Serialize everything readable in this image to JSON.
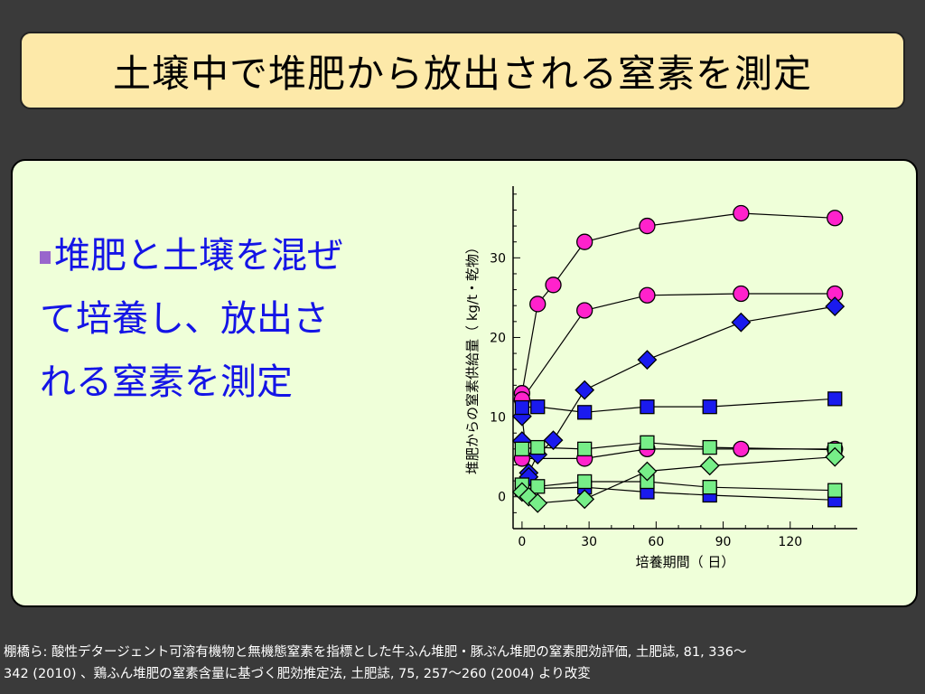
{
  "title": "土壌中で堆肥から放出される窒素を測定",
  "bullet": {
    "lines": [
      "堆肥と土壌を混ぜ",
      "て培養し、放出さ",
      "れる窒素を測定"
    ]
  },
  "footer": {
    "line1": "棚橋ら: 酸性デタージェント可溶有機物と無機態窒素を指標とした牛ふん堆肥・豚ぷん堆肥の窒素肥効評価, 土肥誌, 81, 336〜",
    "line2": "342 (2010) 、鶏ふん堆肥の窒素含量に基づく肥効推定法, 土肥誌, 75, 257〜260 (2004) より改変"
  },
  "colors": {
    "title_bg": "#fde9a9",
    "panel_bg": "#efffd9",
    "bullet_text": "#1414e6",
    "magenta": "#ff22cc",
    "blue": "#1a1aee",
    "green": "#77ee88"
  },
  "chart_data": {
    "type": "scatter",
    "xlabel": "培養期間（ 日）",
    "ylabel": "堆肥からの窒素供給量（ kg/t・乾物）",
    "xlim": [
      -4,
      150
    ],
    "ylim": [
      -4,
      39
    ],
    "xticks": [
      0,
      30,
      60,
      90,
      120
    ],
    "yticks": [
      0,
      10,
      20,
      30
    ],
    "series": [
      {
        "marker": "circle",
        "color": "#ff22cc",
        "x": [
          0,
          7,
          14,
          28,
          56,
          98,
          140
        ],
        "y": [
          13,
          24.2,
          26.6,
          32,
          34,
          35.6,
          35
        ]
      },
      {
        "marker": "circle",
        "color": "#ff22cc",
        "x": [
          0,
          28,
          56,
          98,
          140
        ],
        "y": [
          12.2,
          23.4,
          25.3,
          25.5,
          25.5
        ]
      },
      {
        "marker": "circle",
        "color": "#ff22cc",
        "x": [
          0,
          28,
          56,
          98,
          140
        ],
        "y": [
          4.8,
          4.8,
          6,
          6,
          6
        ]
      },
      {
        "marker": "diamond",
        "color": "#1a1aee",
        "x": [
          0,
          3,
          7,
          14,
          28,
          56,
          98,
          140
        ],
        "y": [
          10.1,
          3,
          5.3,
          7.1,
          13.4,
          17.2,
          21.9,
          23.9
        ]
      },
      {
        "marker": "diamond",
        "color": "#1a1aee",
        "x": [
          0,
          3
        ],
        "y": [
          7,
          2.5
        ]
      },
      {
        "marker": "square",
        "color": "#1a1aee",
        "x": [
          0,
          7,
          28,
          56,
          84,
          140
        ],
        "y": [
          11.2,
          11.3,
          10.6,
          11.3,
          11.3,
          12.3
        ]
      },
      {
        "marker": "square",
        "color": "#1a1aee",
        "x": [
          0,
          28,
          56,
          84,
          140
        ],
        "y": [
          1,
          1.2,
          0.6,
          0.2,
          -0.4
        ]
      },
      {
        "marker": "square",
        "color": "#77ee88",
        "x": [
          0,
          7,
          28,
          56,
          84,
          140
        ],
        "y": [
          6,
          6.2,
          6,
          6.8,
          6.2,
          5.9
        ]
      },
      {
        "marker": "square",
        "color": "#77ee88",
        "x": [
          0,
          7,
          28,
          56,
          84,
          140
        ],
        "y": [
          1.5,
          1.3,
          1.9,
          1.9,
          1.2,
          0.8
        ]
      },
      {
        "marker": "diamond",
        "color": "#77ee88",
        "x": [
          0,
          3,
          7,
          28,
          56,
          84,
          140
        ],
        "y": [
          0.6,
          0,
          -0.8,
          -0.3,
          3.2,
          3.9,
          5
        ]
      }
    ]
  }
}
